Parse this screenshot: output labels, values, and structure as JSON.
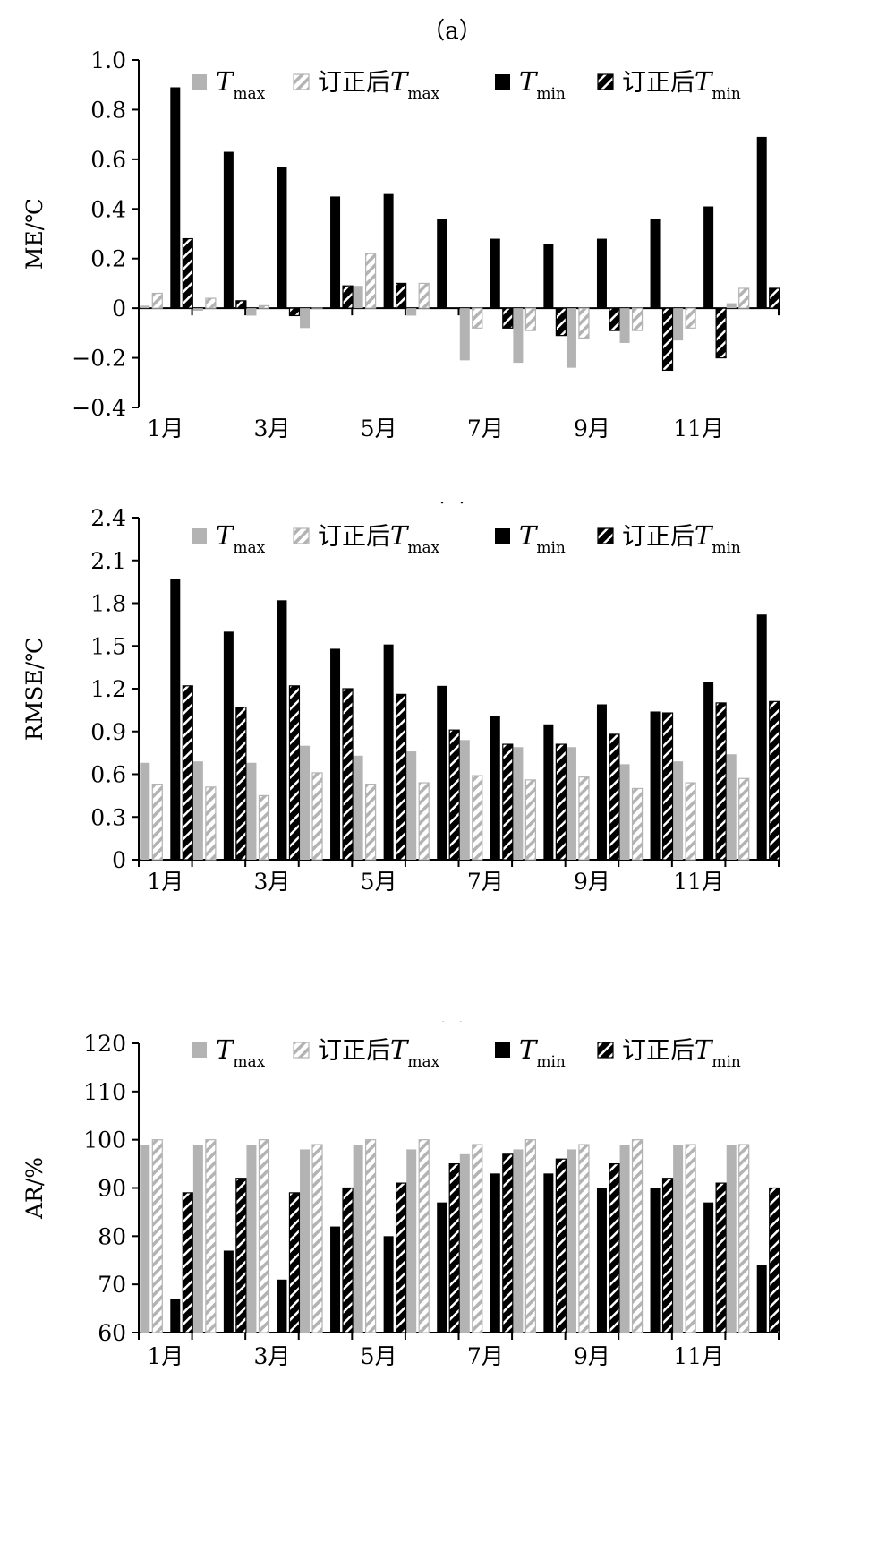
{
  "colors": {
    "tmax": "#b3b3b3",
    "tmin": "#000000",
    "axis": "#000000"
  },
  "legend": [
    {
      "prefix": "",
      "symbol": "T",
      "sub": "max",
      "pattern": "solid-gray"
    },
    {
      "prefix": "订正后",
      "symbol": "T",
      "sub": "max",
      "pattern": "hatch-gray"
    },
    {
      "prefix": "",
      "symbol": "T",
      "sub": "min",
      "pattern": "solid-black"
    },
    {
      "prefix": "订正后",
      "symbol": "T",
      "sub": "min",
      "pattern": "hatch-black"
    }
  ],
  "chart_data": [
    {
      "type": "bar",
      "panel_label": "（a）",
      "ylabel": "ME/℃",
      "ylim": [
        -0.4,
        1.0
      ],
      "yticks": [
        -0.4,
        -0.2,
        0,
        0.2,
        0.4,
        0.6,
        0.8,
        1.0
      ],
      "ytick_labels": [
        "−0.4",
        "−0.2",
        "0",
        "0.2",
        "0.4",
        "0.6",
        "0.8",
        "1.0"
      ],
      "categories": [
        "1月",
        "2月",
        "3月",
        "4月",
        "5月",
        "6月",
        "7月",
        "8月",
        "9月",
        "10月",
        "11月",
        "12月"
      ],
      "xtick_labels": [
        "1月",
        "",
        "3月",
        "",
        "5月",
        "",
        "7月",
        "",
        "9月",
        "",
        "11月",
        ""
      ],
      "series": [
        {
          "name": "Tmax",
          "values": [
            0.01,
            -0.01,
            -0.03,
            -0.08,
            0.09,
            -0.03,
            -0.21,
            -0.22,
            -0.24,
            -0.14,
            -0.13,
            0.02
          ]
        },
        {
          "name": "订正后Tmax",
          "values": [
            0.06,
            0.04,
            0.01,
            0.0,
            0.22,
            0.1,
            -0.08,
            -0.09,
            -0.12,
            -0.09,
            -0.08,
            0.08
          ]
        },
        {
          "name": "Tmin",
          "values": [
            0.89,
            0.63,
            0.57,
            0.45,
            0.46,
            0.36,
            0.28,
            0.26,
            0.28,
            0.36,
            0.41,
            0.69
          ]
        },
        {
          "name": "订正后Tmin",
          "values": [
            0.28,
            0.03,
            -0.03,
            0.09,
            0.1,
            0.0,
            -0.08,
            -0.11,
            -0.09,
            -0.25,
            -0.2,
            0.08
          ]
        }
      ]
    },
    {
      "type": "bar",
      "panel_label": "（b）",
      "ylabel": "RMSE/℃",
      "ylim": [
        0,
        2.4
      ],
      "yticks": [
        0,
        0.3,
        0.6,
        0.9,
        1.2,
        1.5,
        1.8,
        2.1,
        2.4
      ],
      "ytick_labels": [
        "0",
        "0.3",
        "0.6",
        "0.9",
        "1.2",
        "1.5",
        "1.8",
        "2.1",
        "2.4"
      ],
      "categories": [
        "1月",
        "2月",
        "3月",
        "4月",
        "5月",
        "6月",
        "7月",
        "8月",
        "9月",
        "10月",
        "11月",
        "12月"
      ],
      "xtick_labels": [
        "1月",
        "",
        "3月",
        "",
        "5月",
        "",
        "7月",
        "",
        "9月",
        "",
        "11月",
        ""
      ],
      "series": [
        {
          "name": "Tmax",
          "values": [
            0.68,
            0.69,
            0.68,
            0.8,
            0.73,
            0.76,
            0.84,
            0.79,
            0.79,
            0.67,
            0.69,
            0.74
          ]
        },
        {
          "name": "订正后Tmax",
          "values": [
            0.53,
            0.51,
            0.45,
            0.61,
            0.53,
            0.54,
            0.59,
            0.56,
            0.58,
            0.5,
            0.54,
            0.57
          ]
        },
        {
          "name": "Tmin",
          "values": [
            1.97,
            1.6,
            1.82,
            1.48,
            1.51,
            1.22,
            1.01,
            0.95,
            1.09,
            1.04,
            1.25,
            1.72
          ]
        },
        {
          "name": "订正后Tmin",
          "values": [
            1.22,
            1.07,
            1.22,
            1.2,
            1.16,
            0.91,
            0.81,
            0.81,
            0.88,
            1.03,
            1.1,
            1.11
          ]
        }
      ]
    },
    {
      "type": "bar",
      "panel_label": "（c）",
      "ylabel": "AR/%",
      "ylim": [
        60,
        120
      ],
      "yticks": [
        60,
        70,
        80,
        90,
        100,
        110,
        120
      ],
      "ytick_labels": [
        "60",
        "70",
        "80",
        "90",
        "100",
        "110",
        "120"
      ],
      "categories": [
        "1月",
        "2月",
        "3月",
        "4月",
        "5月",
        "6月",
        "7月",
        "8月",
        "9月",
        "10月",
        "11月",
        "12月"
      ],
      "xtick_labels": [
        "1月",
        "",
        "3月",
        "",
        "5月",
        "",
        "7月",
        "",
        "9月",
        "",
        "11月",
        ""
      ],
      "series": [
        {
          "name": "Tmax",
          "values": [
            99,
            99,
            99,
            98,
            99,
            98,
            97,
            98,
            98,
            99,
            99,
            99
          ]
        },
        {
          "name": "订正后Tmax",
          "values": [
            100,
            100,
            100,
            99,
            100,
            100,
            99,
            100,
            99,
            100,
            99,
            99
          ]
        },
        {
          "name": "Tmin",
          "values": [
            67,
            77,
            71,
            82,
            80,
            87,
            93,
            93,
            90,
            90,
            87,
            74
          ]
        },
        {
          "name": "订正后Tmin",
          "values": [
            89,
            92,
            89,
            90,
            91,
            95,
            97,
            96,
            95,
            92,
            91,
            90
          ]
        }
      ]
    }
  ]
}
